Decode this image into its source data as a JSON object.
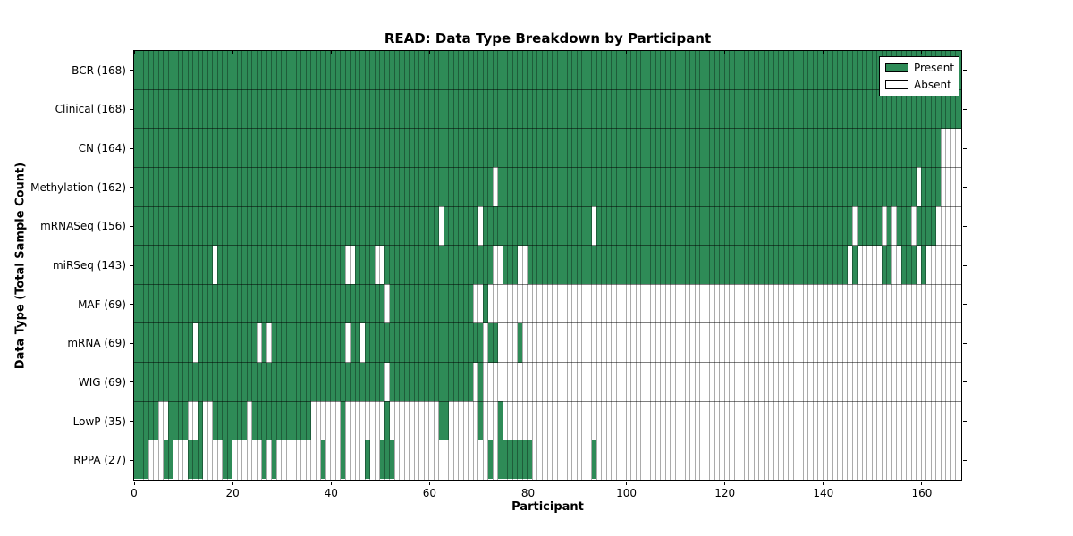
{
  "title": "READ: Data Type Breakdown by Participant",
  "axes": {
    "xlabel": "Participant",
    "ylabel": "Data Type (Total Sample Count)"
  },
  "legend": {
    "items": [
      {
        "label": "Present",
        "color": "#2e8b57"
      },
      {
        "label": "Absent",
        "color": "#ffffff"
      }
    ]
  },
  "colors": {
    "present": "#2e8b57",
    "absent": "#ffffff",
    "axis": "#000000"
  },
  "chart_data": {
    "type": "heatmap",
    "title": "READ: Data Type Breakdown by Participant",
    "xlabel": "Participant",
    "ylabel": "Data Type (Total Sample Count)",
    "xlim": [
      0,
      168
    ],
    "x_ticks": [
      0,
      20,
      40,
      60,
      80,
      100,
      120,
      140,
      160
    ],
    "n_participants": 168,
    "grid": true,
    "legend_position": "upper right",
    "legend": [
      "Present",
      "Absent"
    ],
    "rows": [
      {
        "label": "BCR (168)",
        "data_type": "BCR",
        "total": 168,
        "present_ranges": [
          [
            0,
            167
          ]
        ]
      },
      {
        "label": "Clinical (168)",
        "data_type": "Clinical",
        "total": 168,
        "present_ranges": [
          [
            0,
            167
          ]
        ]
      },
      {
        "label": "CN (164)",
        "data_type": "CN",
        "total": 164,
        "present_ranges": [
          [
            0,
            163
          ]
        ]
      },
      {
        "label": "Methylation (162)",
        "data_type": "Methylation",
        "total": 162,
        "present_ranges": [
          [
            0,
            72
          ],
          [
            74,
            158
          ],
          [
            160,
            163
          ]
        ]
      },
      {
        "label": "mRNASeq (156)",
        "data_type": "mRNASeq",
        "total": 156,
        "present_ranges": [
          [
            0,
            61
          ],
          [
            63,
            69
          ],
          [
            71,
            92
          ],
          [
            94,
            145
          ],
          [
            147,
            151
          ],
          [
            153,
            153
          ],
          [
            155,
            157
          ],
          [
            159,
            162
          ]
        ]
      },
      {
        "label": "miRSeq (143)",
        "data_type": "miRSeq",
        "total": 143,
        "present_ranges": [
          [
            0,
            15
          ],
          [
            17,
            42
          ],
          [
            45,
            48
          ],
          [
            51,
            72
          ],
          [
            75,
            77
          ],
          [
            80,
            144
          ],
          [
            146,
            146
          ],
          [
            152,
            153
          ],
          [
            156,
            158
          ],
          [
            160,
            160
          ]
        ]
      },
      {
        "label": "MAF (69)",
        "data_type": "MAF",
        "total": 69,
        "present_ranges": [
          [
            0,
            50
          ],
          [
            52,
            68
          ],
          [
            71,
            71
          ]
        ]
      },
      {
        "label": "mRNA (69)",
        "data_type": "mRNA",
        "total": 69,
        "present_ranges": [
          [
            0,
            11
          ],
          [
            13,
            24
          ],
          [
            26,
            26
          ],
          [
            28,
            42
          ],
          [
            44,
            45
          ],
          [
            47,
            70
          ],
          [
            72,
            73
          ],
          [
            78,
            78
          ]
        ]
      },
      {
        "label": "WIG (69)",
        "data_type": "WIG",
        "total": 69,
        "present_ranges": [
          [
            0,
            50
          ],
          [
            52,
            68
          ],
          [
            70,
            70
          ]
        ]
      },
      {
        "label": "LowP (35)",
        "data_type": "LowP",
        "total": 35,
        "present_ranges": [
          [
            0,
            4
          ],
          [
            7,
            10
          ],
          [
            13,
            13
          ],
          [
            16,
            22
          ],
          [
            24,
            35
          ],
          [
            42,
            42
          ],
          [
            51,
            51
          ],
          [
            62,
            63
          ],
          [
            70,
            70
          ],
          [
            74,
            74
          ]
        ]
      },
      {
        "label": "RPPA (27)",
        "data_type": "RPPA",
        "total": 27,
        "present_ranges": [
          [
            0,
            2
          ],
          [
            6,
            7
          ],
          [
            11,
            13
          ],
          [
            18,
            19
          ],
          [
            26,
            26
          ],
          [
            28,
            28
          ],
          [
            38,
            38
          ],
          [
            42,
            42
          ],
          [
            47,
            47
          ],
          [
            50,
            52
          ],
          [
            72,
            72
          ],
          [
            74,
            80
          ],
          [
            93,
            93
          ]
        ]
      }
    ]
  }
}
